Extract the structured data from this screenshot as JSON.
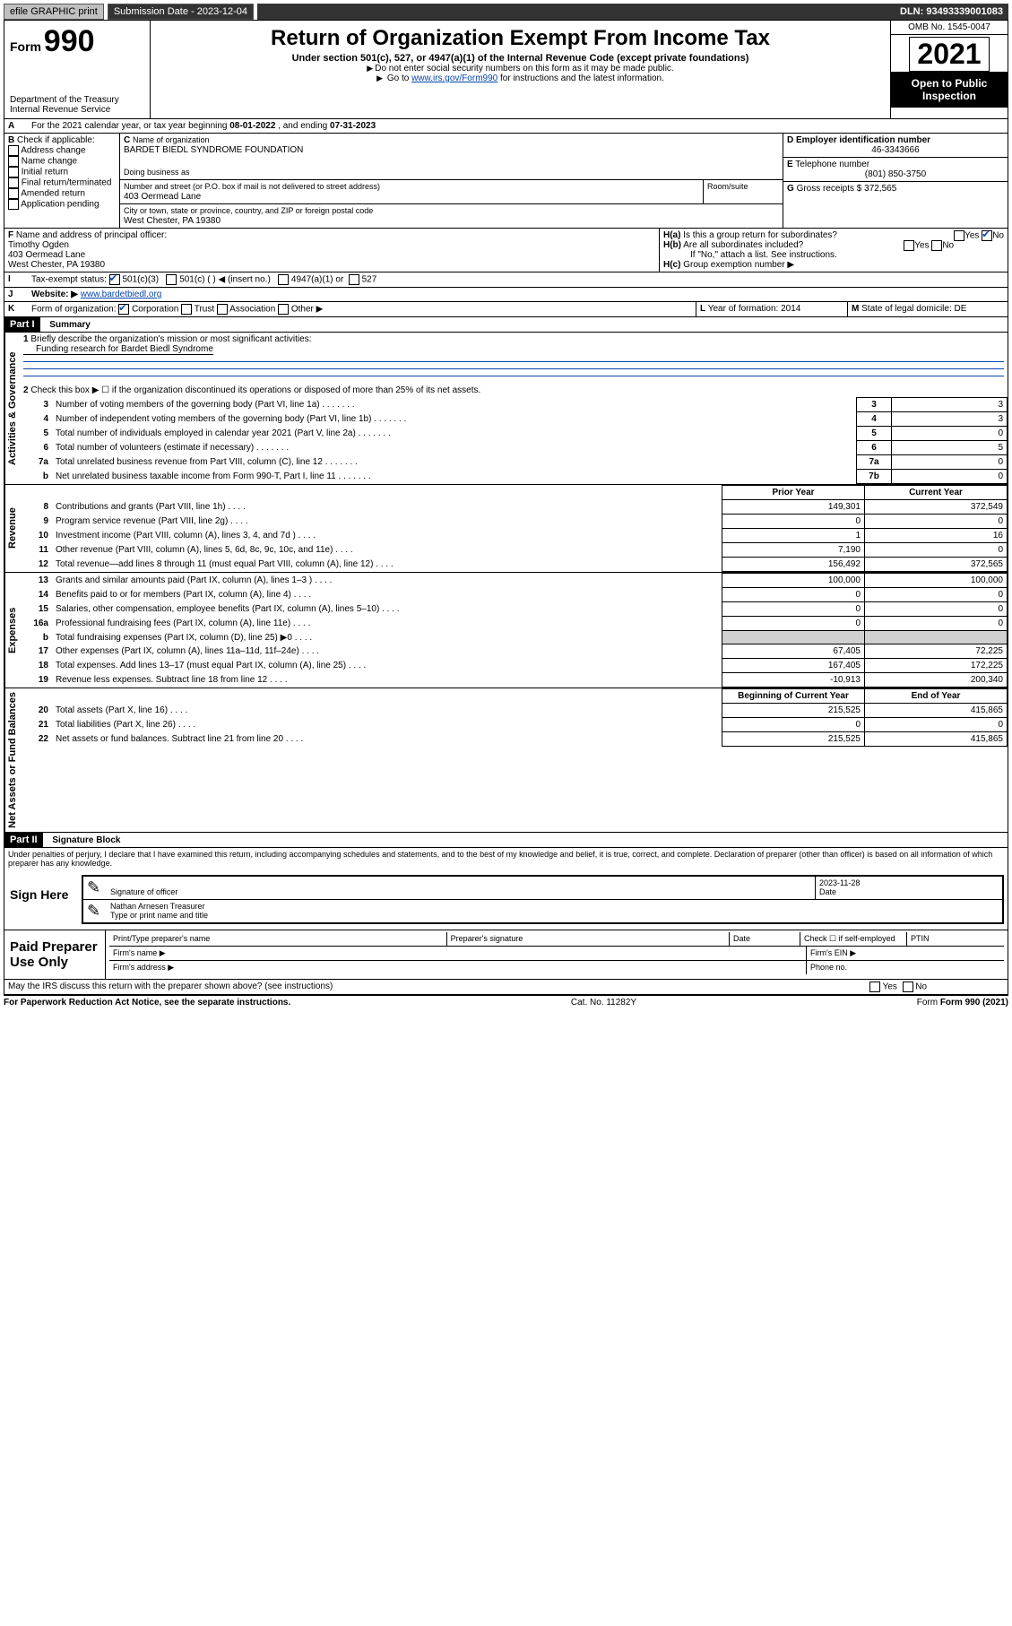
{
  "topbar": {
    "efile": "efile GRAPHIC print",
    "sub_label": "Submission Date - ",
    "sub_date": "2023-12-04",
    "dln": "DLN: 93493339001083"
  },
  "header": {
    "form_prefix": "Form",
    "form_num": "990",
    "dept": "Department of the Treasury",
    "irs": "Internal Revenue Service",
    "title": "Return of Organization Exempt From Income Tax",
    "sub": "Under section 501(c), 527, or 4947(a)(1) of the Internal Revenue Code (except private foundations)",
    "note1": "Do not enter social security numbers on this form as it may be made public.",
    "note2_a": "Go to ",
    "note2_link": "www.irs.gov/Form990",
    "note2_b": " for instructions and the latest information.",
    "omb": "OMB No. 1545-0047",
    "year": "2021",
    "otp": "Open to Public Inspection"
  },
  "A": {
    "text_a": "For the 2021 calendar year, or tax year beginning ",
    "begin": "08-01-2022",
    "text_b": ", and ending ",
    "end": "07-31-2023"
  },
  "B": {
    "label": "Check if applicable:",
    "opts": [
      "Address change",
      "Name change",
      "Initial return",
      "Final return/terminated",
      "Amended return",
      "Application pending"
    ]
  },
  "C": {
    "name_lbl": "Name of organization",
    "name": "BARDET BIEDL SYNDROME FOUNDATION",
    "dba_lbl": "Doing business as",
    "addr_lbl": "Number and street (or P.O. box if mail is not delivered to street address)",
    "room_lbl": "Room/suite",
    "addr": "403 Oermead Lane",
    "city_lbl": "City or town, state or province, country, and ZIP or foreign postal code",
    "city": "West Chester, PA  19380"
  },
  "D": {
    "lbl": "Employer identification number",
    "val": "46-3343666"
  },
  "E": {
    "lbl": "Telephone number",
    "val": "(801) 850-3750"
  },
  "G": {
    "lbl": "Gross receipts $",
    "val": "372,565"
  },
  "F": {
    "lbl": "Name and address of principal officer:",
    "name": "Timothy Ogden",
    "addr1": "403 Oermead Lane",
    "addr2": "West Chester, PA  19380"
  },
  "H": {
    "a": "Is this a group return for subordinates?",
    "a_no": true,
    "b": "Are all subordinates included?",
    "b_note": "If \"No,\" attach a list. See instructions.",
    "c": "Group exemption number ▶"
  },
  "I": {
    "lbl": "Tax-exempt status:",
    "c3": "501(c)(3)",
    "c": "501(c) ( ) ◀ (insert no.)",
    "a4947": "4947(a)(1) or",
    "c527": "527"
  },
  "J": {
    "lbl": "Website: ▶",
    "val": "www.bardetbiedl.org"
  },
  "K": {
    "lbl": "Form of organization:",
    "corp": "Corporation",
    "trust": "Trust",
    "assoc": "Association",
    "other": "Other ▶"
  },
  "L": {
    "lbl": "Year of formation:",
    "val": "2014"
  },
  "M": {
    "lbl": "State of legal domicile:",
    "val": "DE"
  },
  "part1": {
    "title": "Part I",
    "subtitle": "Summary",
    "l1_lbl": "Briefly describe the organization's mission or most significant activities:",
    "l1_val": "Funding research for Bardet Biedl Syndrome",
    "l2": "Check this box ▶ ☐ if the organization discontinued its operations or disposed of more than 25% of its net assets.",
    "rows_ag": [
      {
        "n": "3",
        "t": "Number of voting members of the governing body (Part VI, line 1a)",
        "box": "3",
        "v": "3"
      },
      {
        "n": "4",
        "t": "Number of independent voting members of the governing body (Part VI, line 1b)",
        "box": "4",
        "v": "3"
      },
      {
        "n": "5",
        "t": "Total number of individuals employed in calendar year 2021 (Part V, line 2a)",
        "box": "5",
        "v": "0"
      },
      {
        "n": "6",
        "t": "Total number of volunteers (estimate if necessary)",
        "box": "6",
        "v": "5"
      },
      {
        "n": "7a",
        "t": "Total unrelated business revenue from Part VIII, column (C), line 12",
        "box": "7a",
        "v": "0"
      },
      {
        "n": "b",
        "t": "Net unrelated business taxable income from Form 990-T, Part I, line 11",
        "box": "7b",
        "v": "0"
      }
    ],
    "col_prior": "Prior Year",
    "col_curr": "Current Year",
    "rev": [
      {
        "n": "8",
        "t": "Contributions and grants (Part VIII, line 1h)",
        "p": "149,301",
        "c": "372,549"
      },
      {
        "n": "9",
        "t": "Program service revenue (Part VIII, line 2g)",
        "p": "0",
        "c": "0"
      },
      {
        "n": "10",
        "t": "Investment income (Part VIII, column (A), lines 3, 4, and 7d )",
        "p": "1",
        "c": "16"
      },
      {
        "n": "11",
        "t": "Other revenue (Part VIII, column (A), lines 5, 6d, 8c, 9c, 10c, and 11e)",
        "p": "7,190",
        "c": "0"
      },
      {
        "n": "12",
        "t": "Total revenue—add lines 8 through 11 (must equal Part VIII, column (A), line 12)",
        "p": "156,492",
        "c": "372,565"
      }
    ],
    "exp": [
      {
        "n": "13",
        "t": "Grants and similar amounts paid (Part IX, column (A), lines 1–3 )",
        "p": "100,000",
        "c": "100,000"
      },
      {
        "n": "14",
        "t": "Benefits paid to or for members (Part IX, column (A), line 4)",
        "p": "0",
        "c": "0"
      },
      {
        "n": "15",
        "t": "Salaries, other compensation, employee benefits (Part IX, column (A), lines 5–10)",
        "p": "0",
        "c": "0"
      },
      {
        "n": "16a",
        "t": "Professional fundraising fees (Part IX, column (A), line 11e)",
        "p": "0",
        "c": "0"
      },
      {
        "n": "b",
        "t": "Total fundraising expenses (Part IX, column (D), line 25) ▶0",
        "p": "",
        "c": "",
        "shade": true
      },
      {
        "n": "17",
        "t": "Other expenses (Part IX, column (A), lines 11a–11d, 11f–24e)",
        "p": "67,405",
        "c": "72,225"
      },
      {
        "n": "18",
        "t": "Total expenses. Add lines 13–17 (must equal Part IX, column (A), line 25)",
        "p": "167,405",
        "c": "172,225"
      },
      {
        "n": "19",
        "t": "Revenue less expenses. Subtract line 18 from line 12",
        "p": "-10,913",
        "c": "200,340"
      }
    ],
    "col_beg": "Beginning of Current Year",
    "col_end": "End of Year",
    "net": [
      {
        "n": "20",
        "t": "Total assets (Part X, line 16)",
        "p": "215,525",
        "c": "415,865"
      },
      {
        "n": "21",
        "t": "Total liabilities (Part X, line 26)",
        "p": "0",
        "c": "0"
      },
      {
        "n": "22",
        "t": "Net assets or fund balances. Subtract line 21 from line 20",
        "p": "215,525",
        "c": "415,865"
      }
    ],
    "vlabels": {
      "ag": "Activities & Governance",
      "rev": "Revenue",
      "exp": "Expenses",
      "net": "Net Assets or Fund Balances"
    }
  },
  "part2": {
    "title": "Part II",
    "subtitle": "Signature Block",
    "decl": "Under penalties of perjury, I declare that I have examined this return, including accompanying schedules and statements, and to the best of my knowledge and belief, it is true, correct, and complete. Declaration of preparer (other than officer) is based on all information of which preparer has any knowledge.",
    "sign_here": "Sign Here",
    "sig_officer": "Signature of officer",
    "sig_date_lbl": "Date",
    "sig_date": "2023-11-28",
    "officer_name": "Nathan Arnesen Treasurer",
    "type_name": "Type or print name and title",
    "paid": "Paid Preparer Use Only",
    "prep_name": "Print/Type preparer's name",
    "prep_sig": "Preparer's signature",
    "date": "Date",
    "check_se": "Check ☐ if self-employed",
    "ptin": "PTIN",
    "firm_name": "Firm's name ▶",
    "firm_ein": "Firm's EIN ▶",
    "firm_addr": "Firm's address ▶",
    "phone": "Phone no.",
    "may_irs": "May the IRS discuss this return with the preparer shown above? (see instructions)",
    "yes": "Yes",
    "no": "No"
  },
  "footer": {
    "pra": "For Paperwork Reduction Act Notice, see the separate instructions.",
    "cat": "Cat. No. 11282Y",
    "form": "Form 990 (2021)"
  }
}
